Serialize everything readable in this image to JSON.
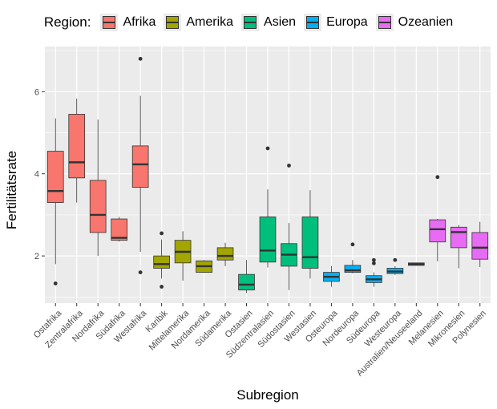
{
  "legend": {
    "title": "Region:",
    "items": [
      {
        "label": "Afrika",
        "color": "#F8766D"
      },
      {
        "label": "Amerika",
        "color": "#A3A500"
      },
      {
        "label": "Asien",
        "color": "#00BF7D"
      },
      {
        "label": "Europa",
        "color": "#00B0F6"
      },
      {
        "label": "Ozeanien",
        "color": "#E76BF3"
      }
    ]
  },
  "chart_data": {
    "type": "boxplot",
    "xlabel": "Subregion",
    "ylabel": "Fertilitätsrate",
    "ylim": [
      0.85,
      7.1
    ],
    "yticks": [
      2,
      4,
      6
    ],
    "grid": true,
    "legend_position": "top",
    "categories": [
      "Ostafrika",
      "Zentralafrika",
      "Nordafrika",
      "Südafrika",
      "Westafrika",
      "Karibik",
      "Mittelamerika",
      "Nordamerika",
      "Südamerika",
      "Ostasien",
      "Südzentralasien",
      "Südostasien",
      "Westasien",
      "Osteuropa",
      "Nordeuropa",
      "Südeuropa",
      "Westeuropa",
      "Australien/Neuseeland",
      "Melanesien",
      "Mikronesien",
      "Polynesien"
    ],
    "boxes": [
      {
        "category": "Ostafrika",
        "region": "Afrika",
        "min": 1.8,
        "q1": 3.3,
        "median": 3.58,
        "q3": 4.55,
        "max": 5.35,
        "outliers": [
          1.33
        ]
      },
      {
        "category": "Zentralafrika",
        "region": "Afrika",
        "min": 3.3,
        "q1": 3.9,
        "median": 4.28,
        "q3": 5.45,
        "max": 5.83,
        "outliers": []
      },
      {
        "category": "Nordafrika",
        "region": "Afrika",
        "min": 2.0,
        "q1": 2.57,
        "median": 3.0,
        "q3": 3.84,
        "max": 5.32,
        "outliers": []
      },
      {
        "category": "Südafrika",
        "region": "Afrika",
        "min": 2.35,
        "q1": 2.38,
        "median": 2.44,
        "q3": 2.9,
        "max": 2.95,
        "outliers": []
      },
      {
        "category": "Westafrika",
        "region": "Afrika",
        "min": 2.1,
        "q1": 3.67,
        "median": 4.23,
        "q3": 4.68,
        "max": 5.9,
        "outliers": [
          6.8,
          1.6
        ]
      },
      {
        "category": "Karibik",
        "region": "Amerika",
        "min": 1.45,
        "q1": 1.7,
        "median": 1.8,
        "q3": 2.0,
        "max": 2.4,
        "outliers": [
          2.55,
          1.25
        ]
      },
      {
        "category": "Mittelamerika",
        "region": "Amerika",
        "min": 1.4,
        "q1": 1.83,
        "median": 2.1,
        "q3": 2.38,
        "max": 2.6,
        "outliers": []
      },
      {
        "category": "Nordamerika",
        "region": "Amerika",
        "min": 1.59,
        "q1": 1.6,
        "median": 1.75,
        "q3": 1.88,
        "max": 1.9,
        "outliers": []
      },
      {
        "category": "Südamerika",
        "region": "Amerika",
        "min": 1.75,
        "q1": 1.9,
        "median": 2.0,
        "q3": 2.2,
        "max": 2.32,
        "outliers": []
      },
      {
        "category": "Ostasien",
        "region": "Asien",
        "min": 1.1,
        "q1": 1.17,
        "median": 1.3,
        "q3": 1.55,
        "max": 1.9,
        "outliers": []
      },
      {
        "category": "Südzentralasien",
        "region": "Asien",
        "min": 1.72,
        "q1": 1.85,
        "median": 2.13,
        "q3": 2.95,
        "max": 3.62,
        "outliers": [
          4.62
        ]
      },
      {
        "category": "Südostasien",
        "region": "Asien",
        "min": 1.17,
        "q1": 1.75,
        "median": 2.03,
        "q3": 2.3,
        "max": 2.8,
        "outliers": [
          4.2
        ]
      },
      {
        "category": "Westasien",
        "region": "Asien",
        "min": 1.45,
        "q1": 1.7,
        "median": 1.97,
        "q3": 2.95,
        "max": 3.6,
        "outliers": []
      },
      {
        "category": "Osteuropa",
        "region": "Europa",
        "min": 1.25,
        "q1": 1.38,
        "median": 1.49,
        "q3": 1.6,
        "max": 1.75,
        "outliers": []
      },
      {
        "category": "Nordeuropa",
        "region": "Europa",
        "min": 1.58,
        "q1": 1.6,
        "median": 1.65,
        "q3": 1.77,
        "max": 1.9,
        "outliers": [
          2.28
        ]
      },
      {
        "category": "Südeuropa",
        "region": "Europa",
        "min": 1.25,
        "q1": 1.35,
        "median": 1.43,
        "q3": 1.52,
        "max": 1.6,
        "outliers": [
          1.9,
          1.82
        ]
      },
      {
        "category": "Westeuropa",
        "region": "Europa",
        "min": 1.54,
        "q1": 1.57,
        "median": 1.62,
        "q3": 1.7,
        "max": 1.75,
        "outliers": [
          1.9
        ]
      },
      {
        "category": "Australien/Neuseeland",
        "region": "Ozeanien",
        "min": 1.77,
        "q1": 1.77,
        "median": 1.8,
        "q3": 1.83,
        "max": 1.83,
        "outliers": []
      },
      {
        "category": "Melanesien",
        "region": "Ozeanien",
        "min": 1.87,
        "q1": 2.34,
        "median": 2.65,
        "q3": 2.88,
        "max": 2.9,
        "outliers": [
          3.92
        ]
      },
      {
        "category": "Mikronesien",
        "region": "Ozeanien",
        "min": 1.7,
        "q1": 2.2,
        "median": 2.58,
        "q3": 2.7,
        "max": 2.75,
        "outliers": []
      },
      {
        "category": "Polynesien",
        "region": "Ozeanien",
        "min": 1.73,
        "q1": 1.92,
        "median": 2.2,
        "q3": 2.57,
        "max": 2.83,
        "outliers": []
      }
    ]
  }
}
